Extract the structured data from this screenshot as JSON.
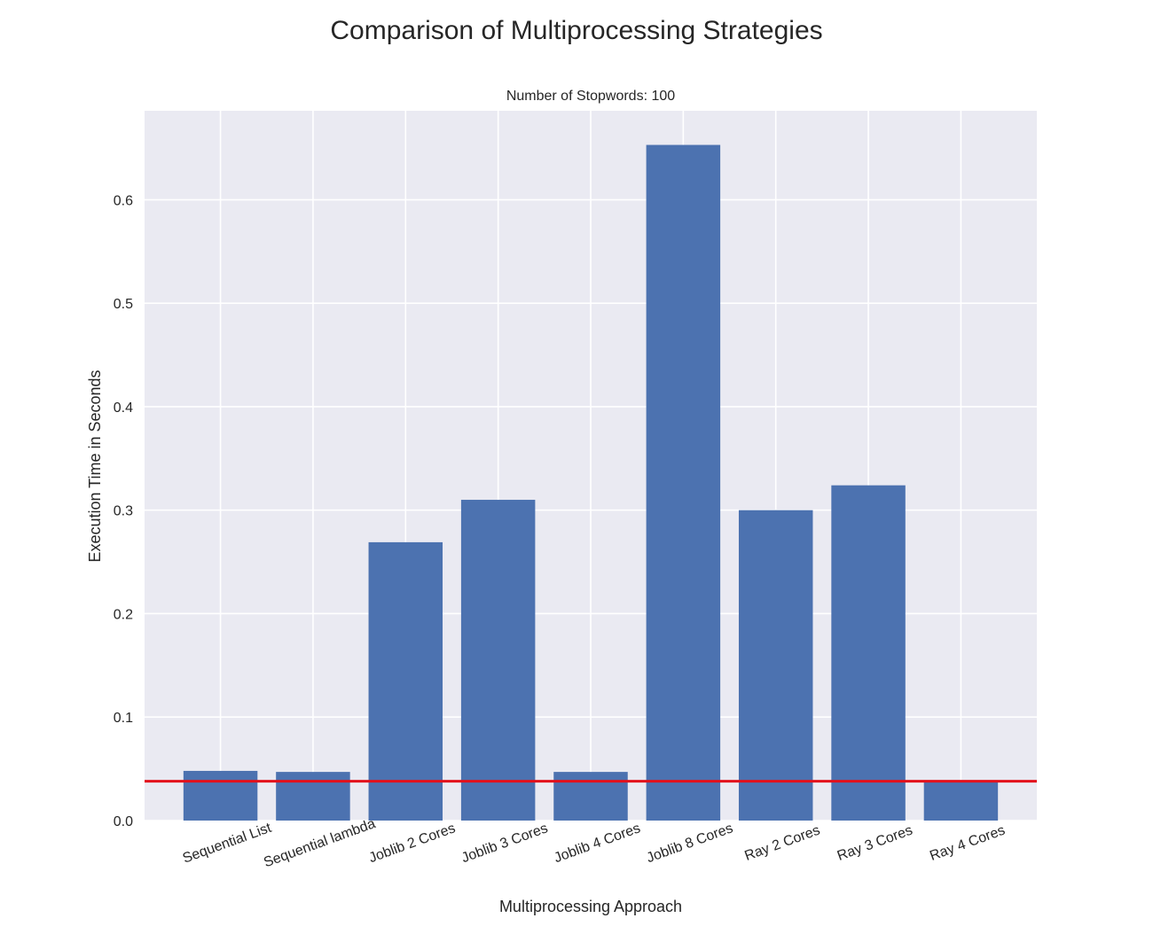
{
  "chart_data": {
    "type": "bar",
    "title": "Comparison of Multiprocessing Strategies",
    "subtitle": "Number of Stopwords: 100",
    "xlabel": "Multiprocessing Approach",
    "ylabel": "Execution Time in Seconds",
    "categories": [
      "Sequential List",
      "Sequential lambda",
      "Joblib 2 Cores",
      "Joblib 3 Cores",
      "Joblib 4 Cores",
      "Joblib 8 Cores",
      "Ray 2 Cores",
      "Ray 3 Cores",
      "Ray 4 Cores"
    ],
    "values": [
      0.048,
      0.047,
      0.269,
      0.31,
      0.047,
      0.653,
      0.3,
      0.324,
      0.037
    ],
    "reference_line": {
      "value": 0.038,
      "color": "#e3101b"
    },
    "ylim": [
      0,
      0.686
    ],
    "yticks": [
      "0.0",
      "0.1",
      "0.2",
      "0.3",
      "0.4",
      "0.5",
      "0.6"
    ],
    "bar_color": "#4c72b0",
    "plot_background": "#eaeaf2",
    "grid": true
  }
}
